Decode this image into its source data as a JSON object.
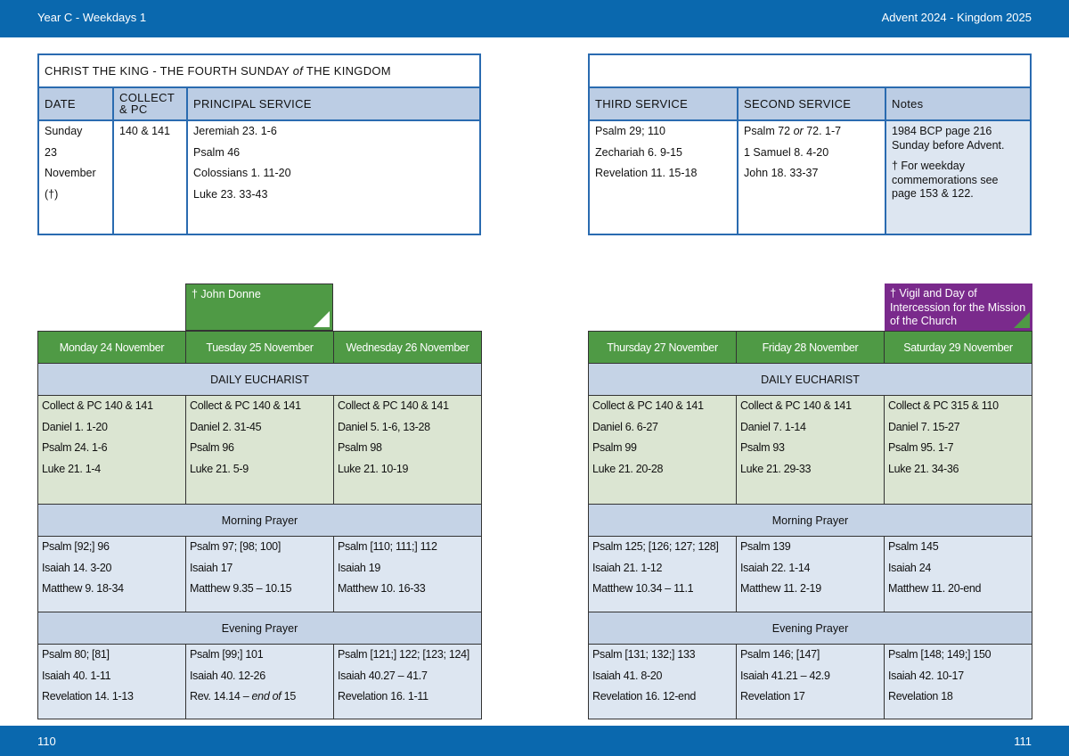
{
  "header": {
    "left": "Year C - Weekdays 1",
    "right": "Advent  2024 - Kingdom 2025"
  },
  "footer": {
    "left": "110",
    "right": "111"
  },
  "sunday": {
    "title": "CHRIST THE KING - THE FOURTH SUNDAY ",
    "title_italic": "of",
    "title_end": " THE KINGDOM",
    "headers": [
      "DATE",
      "COLLECT & PC",
      "PRINCIPAL SERVICE",
      "THIRD SERVICE",
      "SECOND SERVICE",
      "Notes"
    ],
    "date": [
      "Sunday",
      "23",
      "November",
      "(†)"
    ],
    "collect": "140 & 141",
    "principal": [
      "Jeremiah 23. 1-6",
      "Psalm  46",
      "Colossians 1. 11-20",
      "Luke 23. 33-43"
    ],
    "third": [
      "Psalm 29; 110",
      "Zechariah 6. 9-15",
      "Revelation 11. 15-18"
    ],
    "second_a": "Psalm 72 ",
    "second_or": "or",
    "second_b": " 72. 1-7",
    "second": [
      "1 Samuel 8. 4-20",
      "John 18. 33-37"
    ],
    "notes": [
      "1984 BCP page 216 Sunday before Advent.",
      "† For weekday commemorations see page 153 & 122."
    ]
  },
  "tags": {
    "tuesday": "† John Donne",
    "saturday": "† Vigil and Day of Intercession for the Mission of the Church"
  },
  "sections": {
    "eucharist": "DAILY EUCHARIST",
    "morning": "Morning Prayer",
    "evening": "Evening Prayer"
  },
  "days": [
    {
      "name": "Monday 24 November",
      "eu": [
        "Collect & PC 140 & 141",
        "Daniel 1. 1-20",
        "Psalm 24. 1-6",
        "Luke 21. 1-4"
      ],
      "mp": [
        "Psalm [92;] 96",
        "Isaiah 14. 3-20",
        "Matthew 9. 18-34"
      ],
      "ep": [
        "Psalm 80; [81]",
        "Isaiah 40. 1-11",
        "Revelation 14. 1-13"
      ]
    },
    {
      "name": "Tuesday 25 November",
      "eu": [
        "Collect & PC 140 & 141",
        "Daniel 2. 31-45",
        "Psalm 96",
        "Luke 21. 5-9"
      ],
      "mp": [
        "Psalm 97; [98; 100]",
        "Isaiah 17",
        "Matthew 9.35 – 10.15"
      ],
      "ep": [
        "Psalm [99;] 101",
        "Isaiah 40. 12-26",
        "Rev. 14.14 – end of 15"
      ]
    },
    {
      "name": "Wednesday 26 November",
      "eu": [
        "Collect & PC 140 & 141",
        "Daniel 5. 1-6, 13-28",
        "Psalm 98",
        "Luke 21. 10-19"
      ],
      "mp": [
        "Psalm [110; 111;] 112",
        "Isaiah 19",
        "Matthew 10. 16-33"
      ],
      "ep": [
        "Psalm [121;] 122; [123; 124]",
        "Isaiah 40.27 – 41.7",
        "Revelation 16. 1-11"
      ]
    },
    {
      "name": "Thursday 27 November",
      "eu": [
        "Collect & PC 140 & 141",
        "Daniel 6. 6-27",
        "Psalm 99",
        "Luke 21. 20-28"
      ],
      "mp": [
        "Psalm 125; [126; 127; 128]",
        "Isaiah 21. 1-12",
        "Matthew 10.34 – 11.1"
      ],
      "ep": [
        "Psalm [131; 132;] 133",
        "Isaiah 41. 8-20",
        "Revelation 16. 12-end"
      ]
    },
    {
      "name": "Friday 28 November",
      "eu": [
        "Collect & PC 140 & 141",
        "Daniel 7. 1-14",
        "Psalm 93",
        "Luke 21. 29-33"
      ],
      "mp": [
        "Psalm 139",
        "Isaiah 22. 1-14",
        "Matthew 11. 2-19"
      ],
      "ep": [
        "Psalm 146; [147]",
        "Isaiah 41.21 – 42.9",
        "Revelation 17"
      ]
    },
    {
      "name": "Saturday 29 November",
      "eu": [
        "Collect & PC 315 & 110",
        "Daniel 7. 15-27",
        "Psalm 95. 1-7",
        "Luke 21. 34-36"
      ],
      "mp": [
        "Psalm 145",
        "Isaiah 24",
        "Matthew 11. 20-end"
      ],
      "ep": [
        "Psalm [148; 149;] 150",
        "Isaiah 42. 10-17",
        "Revelation 18"
      ]
    }
  ]
}
